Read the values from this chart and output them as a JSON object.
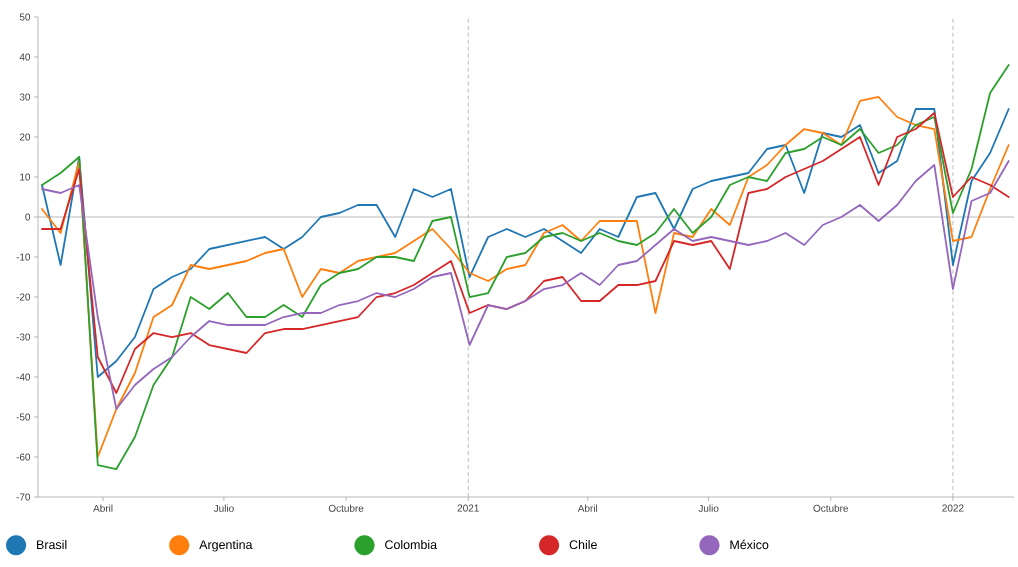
{
  "chart_data": {
    "type": "line",
    "x": [
      "2020-02-15",
      "2020-02-29",
      "2020-03-14",
      "2020-03-28",
      "2020-04-11",
      "2020-04-25",
      "2020-05-09",
      "2020-05-23",
      "2020-06-06",
      "2020-06-20",
      "2020-07-04",
      "2020-07-18",
      "2020-08-01",
      "2020-08-15",
      "2020-08-29",
      "2020-09-12",
      "2020-09-26",
      "2020-10-10",
      "2020-10-24",
      "2020-11-07",
      "2020-11-21",
      "2020-12-05",
      "2020-12-19",
      "2021-01-02",
      "2021-01-16",
      "2021-01-30",
      "2021-02-13",
      "2021-02-27",
      "2021-03-13",
      "2021-03-27",
      "2021-04-10",
      "2021-04-24",
      "2021-05-08",
      "2021-05-22",
      "2021-06-05",
      "2021-06-19",
      "2021-07-03",
      "2021-07-17",
      "2021-07-31",
      "2021-08-14",
      "2021-08-28",
      "2021-09-11",
      "2021-09-25",
      "2021-10-09",
      "2021-10-23",
      "2021-11-06",
      "2021-11-20",
      "2021-12-04",
      "2021-12-18",
      "2022-01-01",
      "2022-01-15",
      "2022-01-29",
      "2022-02-12"
    ],
    "series": [
      {
        "name": "Brasil",
        "color": "#1f77b4",
        "values": [
          8,
          -12,
          15,
          -40,
          -36,
          -30,
          -18,
          -15,
          -13,
          -8,
          -7,
          -6,
          -5,
          -8,
          -5,
          0,
          1,
          3,
          3,
          -5,
          7,
          5,
          7,
          -15,
          -5,
          -3,
          -5,
          -3,
          -6,
          -9,
          -3,
          -5,
          5,
          6,
          -3,
          7,
          9,
          10,
          11,
          17,
          18,
          6,
          21,
          20,
          23,
          11,
          14,
          27,
          27,
          -12,
          9,
          16,
          27
        ]
      },
      {
        "name": "Argentina",
        "color": "#ff7f0e",
        "values": [
          2,
          -4,
          14,
          -60,
          -48,
          -39,
          -25,
          -22,
          -12,
          -13,
          -12,
          -11,
          -9,
          -8,
          -20,
          -13,
          -14,
          -11,
          -10,
          -9,
          -6,
          -3,
          -8,
          -14,
          -16,
          -13,
          -12,
          -4,
          -2,
          -6,
          -1,
          -1,
          -1,
          -24,
          -4,
          -5,
          2,
          -2,
          10,
          13,
          18,
          22,
          21,
          18,
          29,
          30,
          25,
          23,
          22,
          -6,
          -5,
          7,
          18
        ]
      },
      {
        "name": "Colombia",
        "color": "#2ca02c",
        "values": [
          8,
          11,
          15,
          -62,
          -63,
          -55,
          -42,
          -35,
          -20,
          -23,
          -19,
          -25,
          -25,
          -22,
          -25,
          -17,
          -14,
          -13,
          -10,
          -10,
          -11,
          -1,
          0,
          -20,
          -19,
          -10,
          -9,
          -5,
          -4,
          -6,
          -4,
          -6,
          -7,
          -4,
          2,
          -4,
          0,
          8,
          10,
          9,
          16,
          17,
          20,
          18,
          22,
          16,
          18,
          23,
          25,
          1,
          12,
          31,
          38
        ]
      },
      {
        "name": "Chile",
        "color": "#d62728",
        "values": [
          -3,
          -3,
          12,
          -35,
          -44,
          -33,
          -29,
          -30,
          -29,
          -32,
          -33,
          -34,
          -29,
          -28,
          -28,
          -27,
          -26,
          -25,
          -20,
          -19,
          -17,
          -14,
          -11,
          -24,
          -22,
          -23,
          -21,
          -16,
          -15,
          -21,
          -21,
          -17,
          -17,
          -16,
          -6,
          -7,
          -6,
          -13,
          6,
          7,
          10,
          12,
          14,
          17,
          20,
          8,
          20,
          22,
          26,
          5,
          10,
          8,
          5
        ]
      },
      {
        "name": "México",
        "color": "#9467bd",
        "values": [
          7,
          6,
          8,
          -25,
          -48,
          -42,
          -38,
          -35,
          -30,
          -26,
          -27,
          -27,
          -27,
          -25,
          -24,
          -24,
          -22,
          -21,
          -19,
          -20,
          -18,
          -15,
          -14,
          -32,
          -22,
          -23,
          -21,
          -18,
          -17,
          -14,
          -17,
          -12,
          -11,
          -7,
          -3,
          -6,
          -5,
          -6,
          -7,
          -6,
          -4,
          -7,
          -2,
          0,
          3,
          -1,
          3,
          9,
          13,
          -18,
          4,
          6,
          14
        ]
      }
    ],
    "xlim": [
      "2020-02-12",
      "2022-02-16"
    ],
    "xticks": [
      {
        "value": "2020-04-01",
        "label": "Abril"
      },
      {
        "value": "2020-07-01",
        "label": "Julio"
      },
      {
        "value": "2020-10-01",
        "label": "Octubre"
      },
      {
        "value": "2021-01-01",
        "label": "2021"
      },
      {
        "value": "2021-04-01",
        "label": "Abril"
      },
      {
        "value": "2021-07-01",
        "label": "Julio"
      },
      {
        "value": "2021-10-01",
        "label": "Octubre"
      },
      {
        "value": "2022-01-01",
        "label": "2022"
      }
    ],
    "ylim": [
      -70,
      50
    ],
    "yticks": [
      -70,
      -60,
      -50,
      -40,
      -30,
      -20,
      -10,
      0,
      10,
      20,
      30,
      40,
      50
    ],
    "ref_lines": [
      {
        "axis": "y",
        "value": 0,
        "color": "#aaaaaa",
        "line_style": "solid"
      },
      {
        "axis": "x",
        "value": "2021-01-01",
        "color": "#aaaaaa",
        "line_style": "dashed"
      },
      {
        "axis": "x",
        "value": "2022-01-01",
        "color": "#aaaaaa",
        "line_style": "dashed"
      }
    ],
    "legend": "bottom"
  }
}
